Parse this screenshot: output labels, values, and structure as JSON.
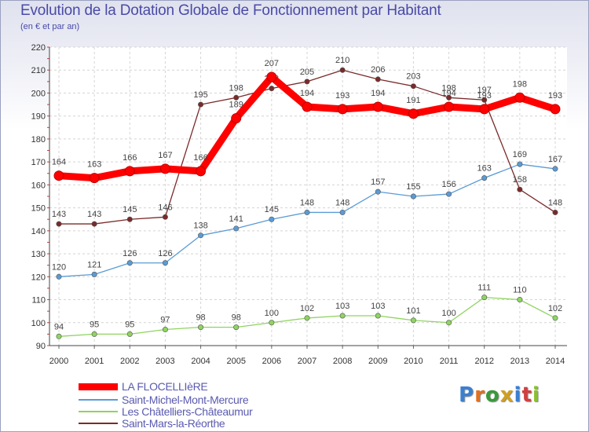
{
  "header": {
    "title": "Evolution de la Dotation Globale de Fonctionnement par Habitant",
    "subtitle": "(en € et par an)"
  },
  "logo": {
    "letters": [
      "P",
      "r",
      "o",
      "x",
      "i",
      "t",
      "i"
    ],
    "colors": [
      "#3a7fd0",
      "#e07020",
      "#3a9a3a",
      "#d0a020",
      "#3a7fd0",
      "#d04040",
      "#8ac030"
    ]
  },
  "chart_data": {
    "type": "line",
    "title": "Evolution de la Dotation Globale de Fonctionnement par Habitant",
    "subtitle": "(en € et par an)",
    "xlabel": "",
    "ylabel": "",
    "x": [
      "2000",
      "2001",
      "2002",
      "2003",
      "2004",
      "2005",
      "2006",
      "2007",
      "2008",
      "2009",
      "2010",
      "2011",
      "2012",
      "2013",
      "2014"
    ],
    "ylim": [
      90,
      220
    ],
    "yticks": [
      "90",
      "100",
      "110",
      "120",
      "130",
      "140",
      "150",
      "160",
      "170",
      "180",
      "190",
      "200",
      "210",
      "220"
    ],
    "grid": true,
    "legend_position": "bottom-left",
    "series": [
      {
        "name": "LA FLOCELLIèRE",
        "color": "#ff0000",
        "values": [
          164,
          163,
          166,
          167,
          166,
          189,
          207,
          194,
          193,
          194,
          191,
          194,
          193,
          198,
          193
        ],
        "labels": [
          "164",
          "163",
          "166",
          "167",
          "166",
          "189",
          "207",
          "194",
          "193",
          "194",
          "191",
          "194",
          "193",
          "198",
          "193"
        ]
      },
      {
        "name": "Saint-Michel-Mont-Mercure",
        "color": "#5b9bd5",
        "values": [
          120,
          121,
          126,
          126,
          138,
          141,
          145,
          148,
          148,
          157,
          155,
          156,
          163,
          169,
          167
        ],
        "labels": [
          "120",
          "121",
          "126",
          "126",
          "138",
          "141",
          "145",
          "148",
          "148",
          "157",
          "155",
          "156",
          "163",
          "169",
          "167"
        ]
      },
      {
        "name": "Les Châtelliers-Châteaumur",
        "color": "#8fd460",
        "values": [
          94,
          95,
          95,
          97,
          98,
          98,
          100,
          102,
          103,
          103,
          101,
          100,
          111,
          110,
          102
        ],
        "labels": [
          "94",
          "95",
          "95",
          "97",
          "98",
          "98",
          "100",
          "102",
          "103",
          "103",
          "101",
          "100",
          "111",
          "110",
          "102"
        ]
      },
      {
        "name": "Saint-Mars-la-Réorthe",
        "color": "#7a2a2a",
        "values": [
          143,
          143,
          145,
          146,
          195,
          198,
          202,
          205,
          210,
          206,
          203,
          198,
          197,
          158,
          148
        ],
        "labels": [
          "143",
          "143",
          "145",
          "146",
          "195",
          "198",
          "202",
          "205",
          "210",
          "206",
          "203",
          "198",
          "197",
          "158",
          "148"
        ]
      }
    ]
  }
}
